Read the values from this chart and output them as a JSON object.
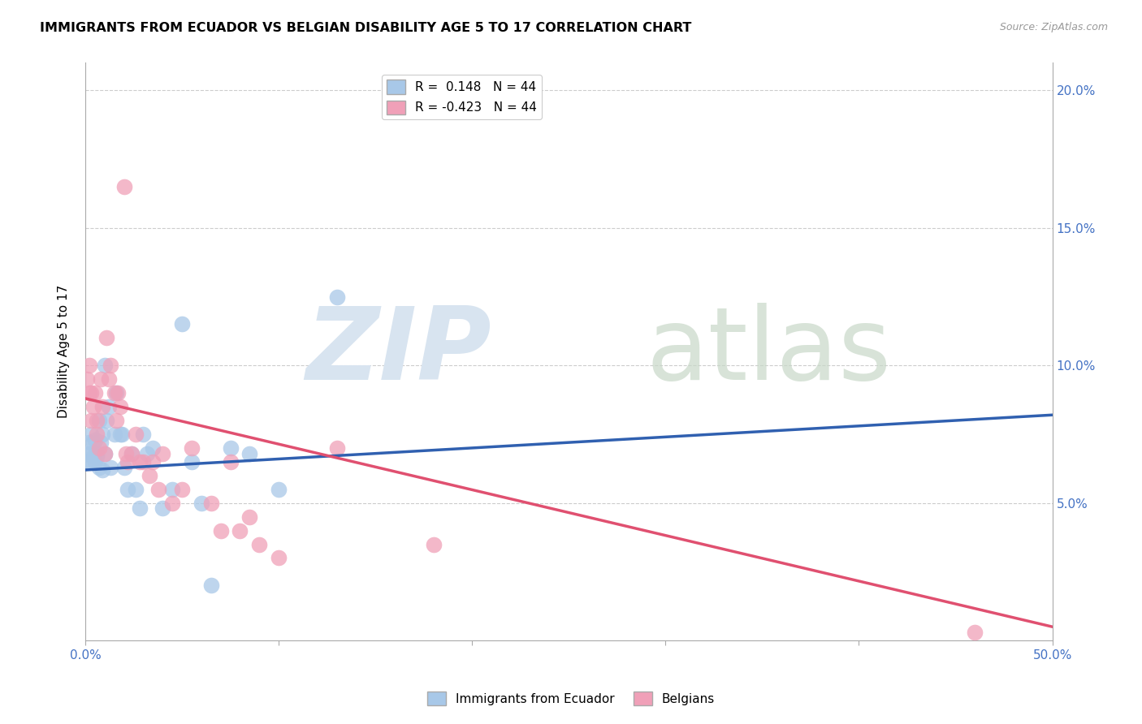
{
  "title": "IMMIGRANTS FROM ECUADOR VS BELGIAN DISABILITY AGE 5 TO 17 CORRELATION CHART",
  "source": "Source: ZipAtlas.com",
  "ylabel": "Disability Age 5 to 17",
  "xlim": [
    0.0,
    0.5
  ],
  "ylim": [
    0.0,
    0.21
  ],
  "blue_color": "#a8c8e8",
  "pink_color": "#f0a0b8",
  "blue_line_color": "#3060b0",
  "pink_line_color": "#e05070",
  "ecuador_x": [
    0.001,
    0.002,
    0.002,
    0.003,
    0.003,
    0.003,
    0.004,
    0.004,
    0.005,
    0.005,
    0.006,
    0.006,
    0.007,
    0.007,
    0.008,
    0.009,
    0.009,
    0.01,
    0.01,
    0.011,
    0.012,
    0.013,
    0.015,
    0.016,
    0.018,
    0.019,
    0.02,
    0.022,
    0.024,
    0.026,
    0.028,
    0.03,
    0.032,
    0.035,
    0.04,
    0.045,
    0.05,
    0.055,
    0.06,
    0.065,
    0.075,
    0.085,
    0.1,
    0.13
  ],
  "ecuador_y": [
    0.068,
    0.072,
    0.065,
    0.075,
    0.068,
    0.065,
    0.072,
    0.067,
    0.073,
    0.065,
    0.068,
    0.067,
    0.08,
    0.063,
    0.072,
    0.075,
    0.062,
    0.1,
    0.068,
    0.08,
    0.085,
    0.063,
    0.075,
    0.09,
    0.075,
    0.075,
    0.063,
    0.055,
    0.068,
    0.055,
    0.048,
    0.075,
    0.068,
    0.07,
    0.048,
    0.055,
    0.115,
    0.065,
    0.05,
    0.02,
    0.07,
    0.068,
    0.055,
    0.125
  ],
  "belgian_x": [
    0.001,
    0.002,
    0.002,
    0.003,
    0.003,
    0.004,
    0.005,
    0.006,
    0.006,
    0.007,
    0.008,
    0.009,
    0.01,
    0.011,
    0.012,
    0.013,
    0.015,
    0.016,
    0.017,
    0.018,
    0.02,
    0.021,
    0.022,
    0.024,
    0.026,
    0.028,
    0.03,
    0.033,
    0.035,
    0.038,
    0.04,
    0.045,
    0.05,
    0.055,
    0.065,
    0.07,
    0.075,
    0.08,
    0.085,
    0.09,
    0.1,
    0.13,
    0.18,
    0.46
  ],
  "belgian_y": [
    0.095,
    0.1,
    0.09,
    0.08,
    0.09,
    0.085,
    0.09,
    0.075,
    0.08,
    0.07,
    0.095,
    0.085,
    0.068,
    0.11,
    0.095,
    0.1,
    0.09,
    0.08,
    0.09,
    0.085,
    0.165,
    0.068,
    0.065,
    0.068,
    0.075,
    0.065,
    0.065,
    0.06,
    0.065,
    0.055,
    0.068,
    0.05,
    0.055,
    0.07,
    0.05,
    0.04,
    0.065,
    0.04,
    0.045,
    0.035,
    0.03,
    0.07,
    0.035,
    0.003
  ],
  "ecuador_trend_x": [
    0.0,
    0.5
  ],
  "ecuador_trend_y": [
    0.062,
    0.082
  ],
  "belgian_trend_x": [
    0.0,
    0.5
  ],
  "belgian_trend_y": [
    0.088,
    0.005
  ]
}
